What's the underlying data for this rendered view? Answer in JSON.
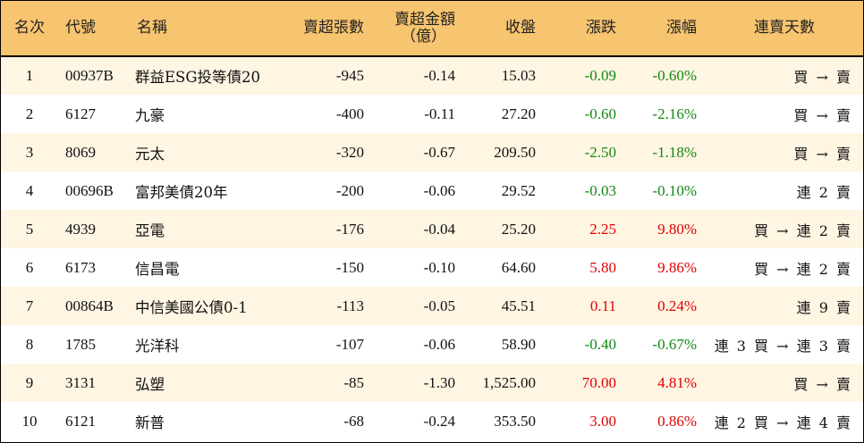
{
  "headers": {
    "rank": "名次",
    "code": "代號",
    "name": "名稱",
    "sell_lots": "賣超張數",
    "sell_amount_line1": "賣超金額",
    "sell_amount_line2": "（億）",
    "close": "收盤",
    "change": "漲跌",
    "change_pct": "漲幅",
    "consecutive": "連賣天數"
  },
  "colors": {
    "header_bg": "#f7c46f",
    "odd_row_bg": "#fff5e3",
    "up": "#e00000",
    "down": "#118a11"
  },
  "rows": [
    {
      "rank": "1",
      "code": "00937B",
      "name": "群益ESG投等債20",
      "lots": "-945",
      "amount": "-0.14",
      "close": "15.03",
      "change": "-0.09",
      "pct": "-0.60%",
      "days": "買 → 賣",
      "dir": "down"
    },
    {
      "rank": "2",
      "code": "6127",
      "name": "九豪",
      "lots": "-400",
      "amount": "-0.11",
      "close": "27.20",
      "change": "-0.60",
      "pct": "-2.16%",
      "days": "買 → 賣",
      "dir": "down"
    },
    {
      "rank": "3",
      "code": "8069",
      "name": "元太",
      "lots": "-320",
      "amount": "-0.67",
      "close": "209.50",
      "change": "-2.50",
      "pct": "-1.18%",
      "days": "買 → 賣",
      "dir": "down"
    },
    {
      "rank": "4",
      "code": "00696B",
      "name": "富邦美債20年",
      "lots": "-200",
      "amount": "-0.06",
      "close": "29.52",
      "change": "-0.03",
      "pct": "-0.10%",
      "days": "連 2 賣",
      "dir": "down"
    },
    {
      "rank": "5",
      "code": "4939",
      "name": "亞電",
      "lots": "-176",
      "amount": "-0.04",
      "close": "25.20",
      "change": "2.25",
      "pct": "9.80%",
      "days": "買 → 連 2 賣",
      "dir": "up"
    },
    {
      "rank": "6",
      "code": "6173",
      "name": "信昌電",
      "lots": "-150",
      "amount": "-0.10",
      "close": "64.60",
      "change": "5.80",
      "pct": "9.86%",
      "days": "買 → 連 2 賣",
      "dir": "up"
    },
    {
      "rank": "7",
      "code": "00864B",
      "name": "中信美國公債0-1",
      "lots": "-113",
      "amount": "-0.05",
      "close": "45.51",
      "change": "0.11",
      "pct": "0.24%",
      "days": "連 9 賣",
      "dir": "up"
    },
    {
      "rank": "8",
      "code": "1785",
      "name": "光洋科",
      "lots": "-107",
      "amount": "-0.06",
      "close": "58.90",
      "change": "-0.40",
      "pct": "-0.67%",
      "days": "連 3 買 → 連 3 賣",
      "dir": "down"
    },
    {
      "rank": "9",
      "code": "3131",
      "name": "弘塑",
      "lots": "-85",
      "amount": "-1.30",
      "close": "1,525.00",
      "change": "70.00",
      "pct": "4.81%",
      "days": "買 → 賣",
      "dir": "up"
    },
    {
      "rank": "10",
      "code": "6121",
      "name": "新普",
      "lots": "-68",
      "amount": "-0.24",
      "close": "353.50",
      "change": "3.00",
      "pct": "0.86%",
      "days": "連 2 買 → 連 4 賣",
      "dir": "up"
    }
  ]
}
